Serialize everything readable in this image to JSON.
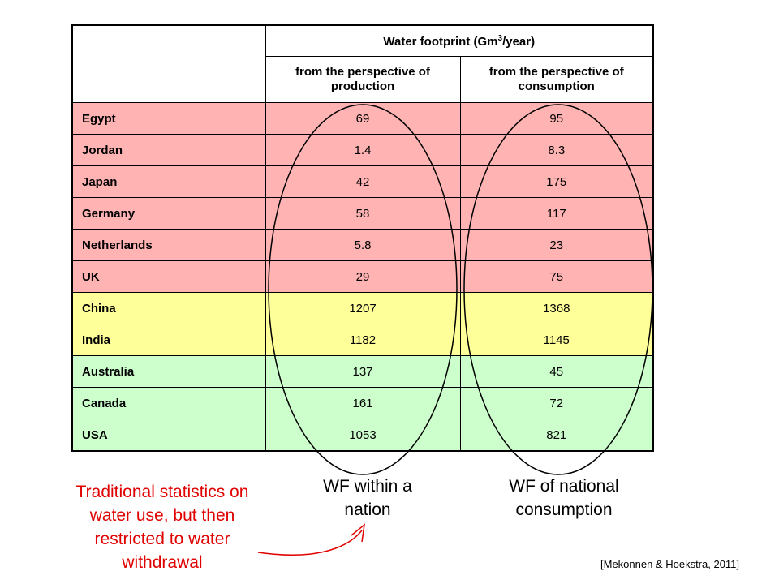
{
  "table": {
    "title_prefix": "Water footprint (Gm",
    "title_sup": "3",
    "title_suffix": "/year)",
    "col_production": "from the perspective of production",
    "col_consumption": "from the perspective of consumption",
    "rows": [
      {
        "country": "Egypt",
        "production": "69",
        "consumption": "95",
        "group": "red"
      },
      {
        "country": "Jordan",
        "production": "1.4",
        "consumption": "8.3",
        "group": "red"
      },
      {
        "country": "Japan",
        "production": "42",
        "consumption": "175",
        "group": "red"
      },
      {
        "country": "Germany",
        "production": "58",
        "consumption": "117",
        "group": "red"
      },
      {
        "country": "Netherlands",
        "production": "5.8",
        "consumption": "23",
        "group": "red"
      },
      {
        "country": "UK",
        "production": "29",
        "consumption": "75",
        "group": "red"
      },
      {
        "country": "China",
        "production": "1207",
        "consumption": "1368",
        "group": "yellow"
      },
      {
        "country": "India",
        "production": "1182",
        "consumption": "1145",
        "group": "yellow"
      },
      {
        "country": "Australia",
        "production": "137",
        "consumption": "45",
        "group": "green"
      },
      {
        "country": "Canada",
        "production": "161",
        "consumption": "72",
        "group": "green"
      },
      {
        "country": "USA",
        "production": "1053",
        "consumption": "821",
        "group": "green"
      }
    ]
  },
  "captions": {
    "within_nation": "WF within a nation",
    "national_consumption": "WF of national consumption",
    "traditional": "Traditional statistics on water use, but then restricted to water withdrawal"
  },
  "source": "[Mekonnen & Hoekstra, 2011]",
  "colors": {
    "red_rows": "#ffb3b3",
    "yellow_rows": "#ffff99",
    "green_rows": "#ccffcc",
    "annotation": "#e00000"
  }
}
